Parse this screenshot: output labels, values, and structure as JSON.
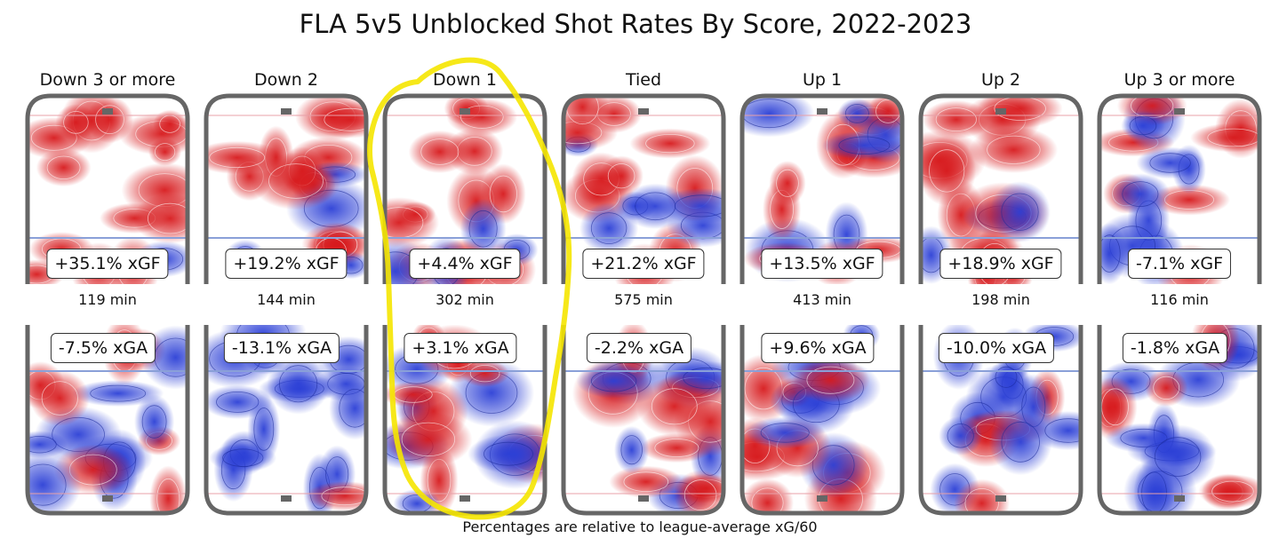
{
  "chart_data": {
    "type": "heatmap",
    "title": "FLA 5v5 Unblocked Shot Rates By Score, 2022-2023",
    "footnote": "Percentages are relative to league-average xG/60",
    "colors": {
      "above_average": "#d7191c",
      "below_average": "#2b3fd6",
      "rink_border": "#666666",
      "highlight": "#f5e600"
    },
    "panels": [
      {
        "state": "Down 3 or more",
        "minutes": 119,
        "xgf_pct": 35.1,
        "xga_pct": -7.5,
        "xgf_label": "+35.1% xGF",
        "xga_label": "-7.5% xGA",
        "minutes_label": "119 min"
      },
      {
        "state": "Down 2",
        "minutes": 144,
        "xgf_pct": 19.2,
        "xga_pct": -13.1,
        "xgf_label": "+19.2% xGF",
        "xga_label": "-13.1% xGA",
        "minutes_label": "144 min"
      },
      {
        "state": "Down 1",
        "minutes": 302,
        "xgf_pct": 4.4,
        "xga_pct": 3.1,
        "xgf_label": "+4.4% xGF",
        "xga_label": "+3.1% xGA",
        "minutes_label": "302 min",
        "highlighted": true
      },
      {
        "state": "Tied",
        "minutes": 575,
        "xgf_pct": 21.2,
        "xga_pct": -2.2,
        "xgf_label": "+21.2% xGF",
        "xga_label": "-2.2% xGA",
        "minutes_label": "575 min"
      },
      {
        "state": "Up 1",
        "minutes": 413,
        "xgf_pct": 13.5,
        "xga_pct": 9.6,
        "xgf_label": "+13.5% xGF",
        "xga_label": "+9.6% xGA",
        "minutes_label": "413 min"
      },
      {
        "state": "Up 2",
        "minutes": 198,
        "xgf_pct": 18.9,
        "xga_pct": -10.0,
        "xgf_label": "+18.9% xGF",
        "xga_label": "-10.0% xGA",
        "minutes_label": "198 min"
      },
      {
        "state": "Up 3 or more",
        "minutes": 116,
        "xgf_pct": -7.1,
        "xga_pct": -1.8,
        "xgf_label": "-7.1% xGF",
        "xga_label": "-1.8% xGA",
        "minutes_label": "116 min"
      }
    ]
  }
}
